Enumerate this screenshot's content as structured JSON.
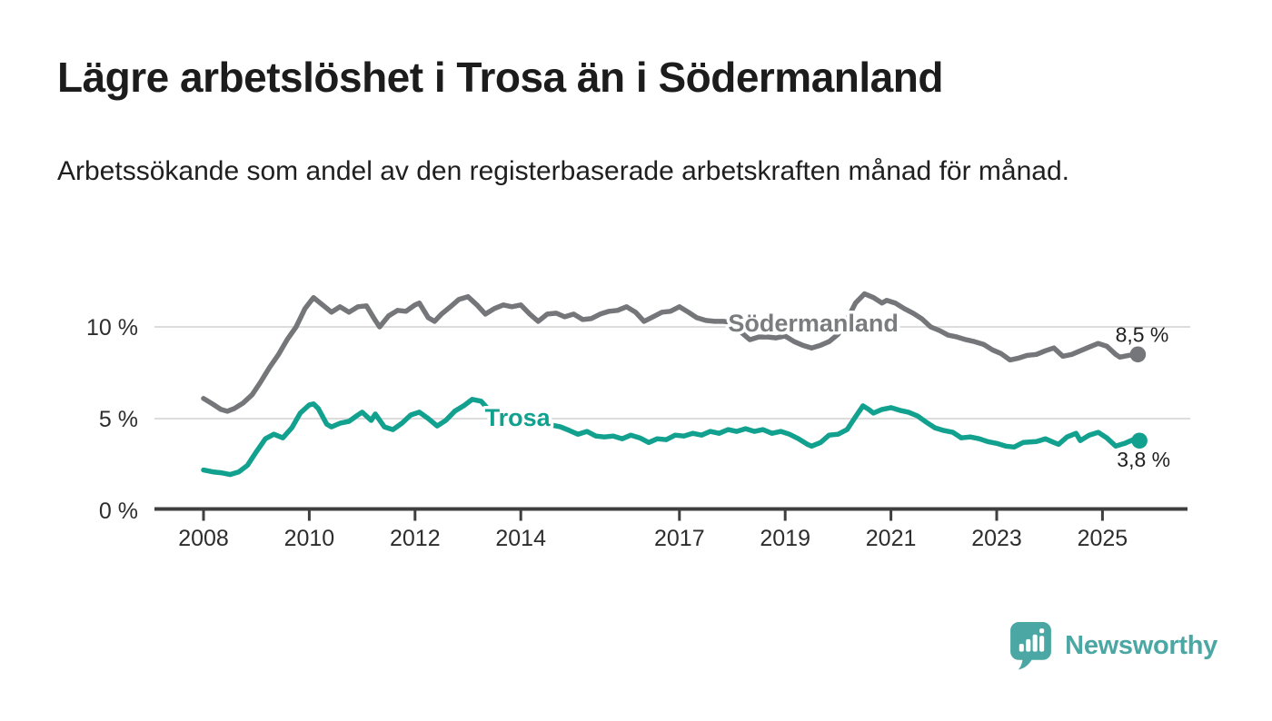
{
  "page": {
    "background": "#ffffff"
  },
  "chart_data": {
    "type": "line",
    "title": "Lägre arbetslöshet i Trosa än i Södermanland",
    "subtitle": "Arbetssökande som andel av den registerbaserade arbetskraften månad för månad.",
    "grid": "horizontal-only",
    "legend_position": "inline-labels",
    "x_axis": {
      "unit": "year",
      "xlim": [
        2007.07,
        2026.66
      ],
      "ticks": [
        {
          "value": 2008,
          "label": "2008"
        },
        {
          "value": 2010,
          "label": "2010"
        },
        {
          "value": 2012,
          "label": "2012"
        },
        {
          "value": 2014,
          "label": "2014"
        },
        {
          "value": 2017,
          "label": "2017"
        },
        {
          "value": 2019,
          "label": "2019"
        },
        {
          "value": 2021,
          "label": "2021"
        },
        {
          "value": 2023,
          "label": "2023"
        },
        {
          "value": 2025,
          "label": "2025"
        }
      ]
    },
    "y_axis": {
      "unit": "percent",
      "ylim": [
        0,
        12.6
      ],
      "ticks": [
        {
          "value": 0,
          "label": "0 %"
        },
        {
          "value": 5,
          "label": "5 %"
        },
        {
          "value": 10,
          "label": "10 %"
        }
      ]
    },
    "series": [
      {
        "name": "Södermanland",
        "color": "#75767a",
        "label": {
          "text": "Södermanland",
          "x": 2017.92,
          "y": 10.2,
          "color": "#7b7c7f"
        },
        "end_label": {
          "text": "8,5 %",
          "position": "above"
        },
        "end_value": 8.5,
        "points": [
          [
            2008.0,
            6.1
          ],
          [
            2008.17,
            5.8
          ],
          [
            2008.33,
            5.5
          ],
          [
            2008.45,
            5.4
          ],
          [
            2008.58,
            5.55
          ],
          [
            2008.75,
            5.85
          ],
          [
            2008.92,
            6.3
          ],
          [
            2009.08,
            7.0
          ],
          [
            2009.25,
            7.8
          ],
          [
            2009.42,
            8.5
          ],
          [
            2009.58,
            9.3
          ],
          [
            2009.75,
            10.0
          ],
          [
            2009.92,
            11.0
          ],
          [
            2010.08,
            11.6
          ],
          [
            2010.25,
            11.2
          ],
          [
            2010.42,
            10.8
          ],
          [
            2010.58,
            11.1
          ],
          [
            2010.75,
            10.8
          ],
          [
            2010.92,
            11.1
          ],
          [
            2011.08,
            11.15
          ],
          [
            2011.25,
            10.35
          ],
          [
            2011.33,
            10.0
          ],
          [
            2011.5,
            10.6
          ],
          [
            2011.67,
            10.9
          ],
          [
            2011.83,
            10.85
          ],
          [
            2012.0,
            11.2
          ],
          [
            2012.08,
            11.3
          ],
          [
            2012.25,
            10.5
          ],
          [
            2012.37,
            10.3
          ],
          [
            2012.5,
            10.7
          ],
          [
            2012.67,
            11.1
          ],
          [
            2012.83,
            11.5
          ],
          [
            2013.0,
            11.65
          ],
          [
            2013.17,
            11.2
          ],
          [
            2013.33,
            10.7
          ],
          [
            2013.5,
            11.0
          ],
          [
            2013.67,
            11.2
          ],
          [
            2013.83,
            11.1
          ],
          [
            2014.0,
            11.2
          ],
          [
            2014.17,
            10.7
          ],
          [
            2014.33,
            10.3
          ],
          [
            2014.5,
            10.7
          ],
          [
            2014.67,
            10.75
          ],
          [
            2014.83,
            10.55
          ],
          [
            2015.0,
            10.7
          ],
          [
            2015.17,
            10.4
          ],
          [
            2015.33,
            10.45
          ],
          [
            2015.5,
            10.7
          ],
          [
            2015.67,
            10.85
          ],
          [
            2015.83,
            10.9
          ],
          [
            2016.0,
            11.1
          ],
          [
            2016.17,
            10.8
          ],
          [
            2016.33,
            10.3
          ],
          [
            2016.5,
            10.55
          ],
          [
            2016.67,
            10.8
          ],
          [
            2016.83,
            10.85
          ],
          [
            2017.0,
            11.1
          ],
          [
            2017.17,
            10.8
          ],
          [
            2017.33,
            10.5
          ],
          [
            2017.5,
            10.35
          ],
          [
            2017.67,
            10.3
          ],
          [
            2017.83,
            10.3
          ],
          [
            2018.0,
            10.25
          ],
          [
            2018.17,
            9.7
          ],
          [
            2018.33,
            9.3
          ],
          [
            2018.5,
            9.45
          ],
          [
            2018.67,
            9.45
          ],
          [
            2018.83,
            9.4
          ],
          [
            2019.0,
            9.5
          ],
          [
            2019.17,
            9.2
          ],
          [
            2019.33,
            9.0
          ],
          [
            2019.5,
            8.85
          ],
          [
            2019.67,
            9.0
          ],
          [
            2019.83,
            9.2
          ],
          [
            2020.0,
            9.6
          ],
          [
            2020.17,
            10.4
          ],
          [
            2020.33,
            11.3
          ],
          [
            2020.5,
            11.8
          ],
          [
            2020.67,
            11.6
          ],
          [
            2020.83,
            11.3
          ],
          [
            2020.92,
            11.45
          ],
          [
            2021.08,
            11.3
          ],
          [
            2021.25,
            11.0
          ],
          [
            2021.42,
            10.75
          ],
          [
            2021.58,
            10.45
          ],
          [
            2021.75,
            10.0
          ],
          [
            2021.92,
            9.8
          ],
          [
            2022.08,
            9.55
          ],
          [
            2022.25,
            9.45
          ],
          [
            2022.42,
            9.3
          ],
          [
            2022.58,
            9.2
          ],
          [
            2022.75,
            9.05
          ],
          [
            2022.92,
            8.75
          ],
          [
            2023.08,
            8.55
          ],
          [
            2023.25,
            8.2
          ],
          [
            2023.42,
            8.3
          ],
          [
            2023.58,
            8.45
          ],
          [
            2023.75,
            8.5
          ],
          [
            2023.92,
            8.7
          ],
          [
            2024.08,
            8.85
          ],
          [
            2024.25,
            8.4
          ],
          [
            2024.42,
            8.5
          ],
          [
            2024.58,
            8.7
          ],
          [
            2024.75,
            8.9
          ],
          [
            2024.92,
            9.1
          ],
          [
            2025.08,
            8.95
          ],
          [
            2025.25,
            8.5
          ],
          [
            2025.33,
            8.35
          ],
          [
            2025.5,
            8.45
          ],
          [
            2025.67,
            8.5
          ]
        ]
      },
      {
        "name": "Trosa",
        "color": "#12a08f",
        "label": {
          "text": "Trosa",
          "x": 2013.32,
          "y": 5.05,
          "color": "#12a08f"
        },
        "end_label": {
          "text": "3,8 %",
          "position": "below"
        },
        "end_value": 3.8,
        "points": [
          [
            2008.0,
            2.2
          ],
          [
            2008.17,
            2.1
          ],
          [
            2008.33,
            2.05
          ],
          [
            2008.5,
            1.95
          ],
          [
            2008.67,
            2.1
          ],
          [
            2008.83,
            2.45
          ],
          [
            2009.0,
            3.2
          ],
          [
            2009.17,
            3.9
          ],
          [
            2009.33,
            4.15
          ],
          [
            2009.5,
            3.95
          ],
          [
            2009.67,
            4.5
          ],
          [
            2009.83,
            5.3
          ],
          [
            2010.0,
            5.75
          ],
          [
            2010.08,
            5.8
          ],
          [
            2010.17,
            5.55
          ],
          [
            2010.33,
            4.7
          ],
          [
            2010.42,
            4.55
          ],
          [
            2010.58,
            4.75
          ],
          [
            2010.75,
            4.85
          ],
          [
            2010.92,
            5.2
          ],
          [
            2011.0,
            5.35
          ],
          [
            2011.17,
            4.9
          ],
          [
            2011.25,
            5.25
          ],
          [
            2011.42,
            4.55
          ],
          [
            2011.58,
            4.4
          ],
          [
            2011.75,
            4.75
          ],
          [
            2011.92,
            5.2
          ],
          [
            2012.08,
            5.35
          ],
          [
            2012.25,
            5.0
          ],
          [
            2012.42,
            4.6
          ],
          [
            2012.58,
            4.9
          ],
          [
            2012.75,
            5.4
          ],
          [
            2012.92,
            5.7
          ],
          [
            2013.08,
            6.05
          ],
          [
            2013.25,
            5.95
          ],
          [
            2013.42,
            5.4
          ],
          [
            2013.58,
            5.1
          ],
          [
            2013.75,
            4.9
          ],
          [
            2013.92,
            4.75
          ],
          [
            2014.08,
            4.7
          ],
          [
            2014.25,
            4.75
          ],
          [
            2014.42,
            4.7
          ],
          [
            2014.58,
            4.65
          ],
          [
            2014.75,
            4.55
          ],
          [
            2014.92,
            4.35
          ],
          [
            2015.08,
            4.15
          ],
          [
            2015.25,
            4.3
          ],
          [
            2015.42,
            4.05
          ],
          [
            2015.58,
            4.0
          ],
          [
            2015.75,
            4.05
          ],
          [
            2015.92,
            3.9
          ],
          [
            2016.08,
            4.1
          ],
          [
            2016.25,
            3.95
          ],
          [
            2016.42,
            3.7
          ],
          [
            2016.58,
            3.9
          ],
          [
            2016.75,
            3.85
          ],
          [
            2016.92,
            4.1
          ],
          [
            2017.08,
            4.05
          ],
          [
            2017.25,
            4.2
          ],
          [
            2017.42,
            4.1
          ],
          [
            2017.58,
            4.3
          ],
          [
            2017.75,
            4.2
          ],
          [
            2017.92,
            4.4
          ],
          [
            2018.08,
            4.3
          ],
          [
            2018.25,
            4.45
          ],
          [
            2018.42,
            4.3
          ],
          [
            2018.58,
            4.4
          ],
          [
            2018.75,
            4.2
          ],
          [
            2018.92,
            4.3
          ],
          [
            2019.08,
            4.15
          ],
          [
            2019.25,
            3.9
          ],
          [
            2019.42,
            3.6
          ],
          [
            2019.5,
            3.5
          ],
          [
            2019.67,
            3.7
          ],
          [
            2019.83,
            4.1
          ],
          [
            2020.0,
            4.15
          ],
          [
            2020.17,
            4.4
          ],
          [
            2020.33,
            5.1
          ],
          [
            2020.47,
            5.7
          ],
          [
            2020.58,
            5.5
          ],
          [
            2020.67,
            5.3
          ],
          [
            2020.83,
            5.5
          ],
          [
            2021.0,
            5.6
          ],
          [
            2021.17,
            5.45
          ],
          [
            2021.33,
            5.35
          ],
          [
            2021.5,
            5.15
          ],
          [
            2021.67,
            4.8
          ],
          [
            2021.83,
            4.5
          ],
          [
            2022.0,
            4.35
          ],
          [
            2022.17,
            4.25
          ],
          [
            2022.33,
            3.95
          ],
          [
            2022.5,
            4.0
          ],
          [
            2022.67,
            3.9
          ],
          [
            2022.83,
            3.75
          ],
          [
            2023.0,
            3.65
          ],
          [
            2023.17,
            3.5
          ],
          [
            2023.33,
            3.45
          ],
          [
            2023.5,
            3.7
          ],
          [
            2023.75,
            3.75
          ],
          [
            2023.92,
            3.9
          ],
          [
            2024.08,
            3.7
          ],
          [
            2024.17,
            3.6
          ],
          [
            2024.33,
            4.0
          ],
          [
            2024.5,
            4.2
          ],
          [
            2024.58,
            3.8
          ],
          [
            2024.75,
            4.1
          ],
          [
            2024.92,
            4.25
          ],
          [
            2025.08,
            3.95
          ],
          [
            2025.25,
            3.5
          ],
          [
            2025.42,
            3.65
          ],
          [
            2025.58,
            3.85
          ],
          [
            2025.7,
            3.8
          ]
        ]
      }
    ],
    "colors": {
      "gridline": "#dcdcdc",
      "axis": "#3f3f3f",
      "tick_label": "#2d2d2d",
      "end_label": "#1f1f1f"
    }
  },
  "footer": {
    "brand": "Newsworthy",
    "brand_color": "#4ba7a4",
    "logo_icon": "bar-chart-speech-bubble-icon"
  }
}
